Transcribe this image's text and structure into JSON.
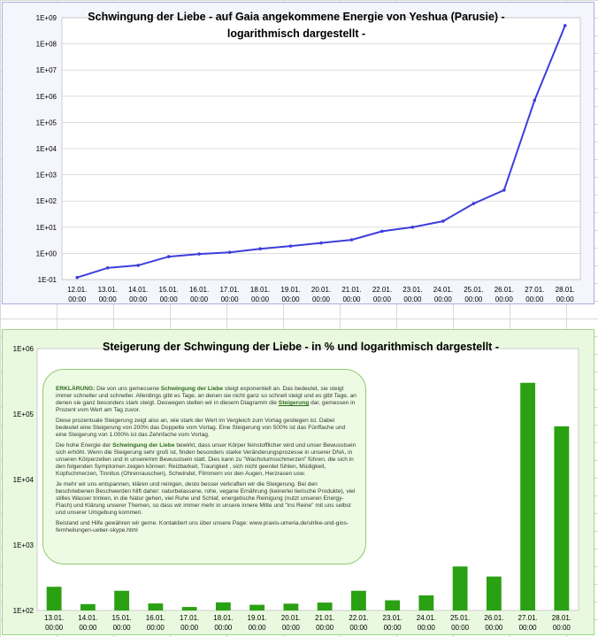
{
  "chart_data": [
    {
      "type": "line",
      "title": "Schwingung der Liebe - auf Gaia angekommene Energie von Yeshua (Parusie) -",
      "subtitle": "logarithmisch dargestellt -",
      "categories": [
        [
          "12.01.",
          "00:00"
        ],
        [
          "13.01.",
          "00:00"
        ],
        [
          "14.01.",
          "00:00"
        ],
        [
          "15.01.",
          "00:00"
        ],
        [
          "16.01.",
          "00:00"
        ],
        [
          "17.01.",
          "00:00"
        ],
        [
          "18.01.",
          "00:00"
        ],
        [
          "19.01.",
          "00:00"
        ],
        [
          "20.01.",
          "00:00"
        ],
        [
          "21.01.",
          "00:00"
        ],
        [
          "22.01.",
          "00:00"
        ],
        [
          "23.01.",
          "00:00"
        ],
        [
          "24.01.",
          "00:00"
        ],
        [
          "25.01.",
          "00:00"
        ],
        [
          "26.01.",
          "00:00"
        ],
        [
          "27.01.",
          "00:00"
        ],
        [
          "28.01.",
          "00:00"
        ]
      ],
      "values": [
        0.12,
        0.28,
        0.35,
        0.75,
        0.95,
        1.1,
        1.5,
        1.9,
        2.5,
        3.3,
        7,
        10,
        17,
        80,
        260,
        700000,
        500000000
      ],
      "yscale": "log",
      "ylim": [
        0.1,
        1000000000
      ],
      "yticks": [
        "1E-01",
        "1E+00",
        "1E+01",
        "1E+02",
        "1E+03",
        "1E+04",
        "1E+05",
        "1E+06",
        "1E+07",
        "1E+08",
        "1E+09"
      ],
      "grid": true,
      "color": "#3d3ddc"
    },
    {
      "type": "bar",
      "title": "Steigerung der Schwingung der Liebe - in % und logarithmisch dargestellt -",
      "categories": [
        [
          "13.01.",
          "00:00"
        ],
        [
          "14.01.",
          "00:00"
        ],
        [
          "15.01.",
          "00:00"
        ],
        [
          "16.01.",
          "00:00"
        ],
        [
          "17.01.",
          "00:00"
        ],
        [
          "18.01.",
          "00:00"
        ],
        [
          "19.01.",
          "00:00"
        ],
        [
          "20.01.",
          "00:00"
        ],
        [
          "21.01.",
          "00:00"
        ],
        [
          "22.01.",
          "00:00"
        ],
        [
          "23.01.",
          "00:00"
        ],
        [
          "24.01.",
          "00:00"
        ],
        [
          "25.01.",
          "00:00"
        ],
        [
          "26.01.",
          "00:00"
        ],
        [
          "27.01.",
          "00:00"
        ],
        [
          "28.01.",
          "00:00"
        ]
      ],
      "values": [
        230,
        125,
        200,
        128,
        113,
        133,
        122,
        127,
        132,
        200,
        143,
        170,
        470,
        330,
        300000,
        65000
      ],
      "yscale": "log",
      "ylim": [
        100,
        1000000
      ],
      "yticks": [
        "1E+02",
        "1E+03",
        "1E+04",
        "1E+05",
        "1E+06"
      ],
      "grid": false,
      "color": "#2aa112"
    }
  ],
  "explanation": {
    "p1_label": "ERKLÄRUNG:",
    "p1_a": " Die von uns gemessene ",
    "p1_b": "Schwingung der Liebe",
    "p1_c": " steigt exponentiell an. Das bedeutet, sie steigt immer schneller und schneller. Allerdings gibt es Tage, an denen sie nicht ganz so schnell steigt und es gibt Tage, an denen sie ganz besonders stark steigt. Deswegen stellen wir in diesem Diagramm die ",
    "p1_d": "Steigerung",
    "p1_e": " dar, gemessen in Prozent vom Wert am Tag zuvor.",
    "p2": "Diese prozentuale Steigerung zeigt also an, wie stark der Wert im Vergleich zum Vortag gestiegen ist. Dabei bedeutet eine Steigerung von 200% das Doppelte vom Vortag. Eine Steigerung von 500% ist das Fünffache und eine Steigerung von 1.000% ist das Zehnfache vom Vortag.",
    "p3_a": "Die hohe Energie der ",
    "p3_b": "Schwingung der Liebe",
    "p3_c": " bewirkt, dass unser Körper feinstofflicher wird und unser Bewusstsein sich erhöht. Wenn die Steigerung sehr groß ist, finden besonders starke Veränderungsprozesse in unserer DNA, in unseren Körperzellen und in unseremm Bewusstsein statt. Dies kann zu \"Wachstumsschmerzen\" führen, die sich in den folgenden Symptomen zeigen können: Reizbarkeit, Traurigkeit , sich nicht geerdet fühlen, Müdigkeit, Kopfschmerzen, Tinnitus (Ohrenrauschen), Schwindel, Flimmern vor den Augen, Herzrasen usw.",
    "p4": "Je mehr wir uns entspannen, klären und reinigen, desto besser verkraften wir die Steigerung. Bei den beschriebenen Beschwerden hilft daher: naturbelassene, rohe, vegane Ernährung (keinerlei tierische Produkte), viel stilles Wasser trinken, in die Natur gehen, viel Ruhe und Schlaf, energetische Reinigung (nutzt unseren Energy-Flash) und Klärung unserer Themen, so dass wir immer mehr in unsere innere Mitte und \"ins Reine\" mit uns selbst und unserer Umgebung kommen.",
    "p5": "Beistand und Hilfe gewähren wir gerne. Kontaktiert uns über unsere Page: www.praxis-umeria.de/ulrike-und-gios-fernheilungen-ueber-skype.html"
  }
}
